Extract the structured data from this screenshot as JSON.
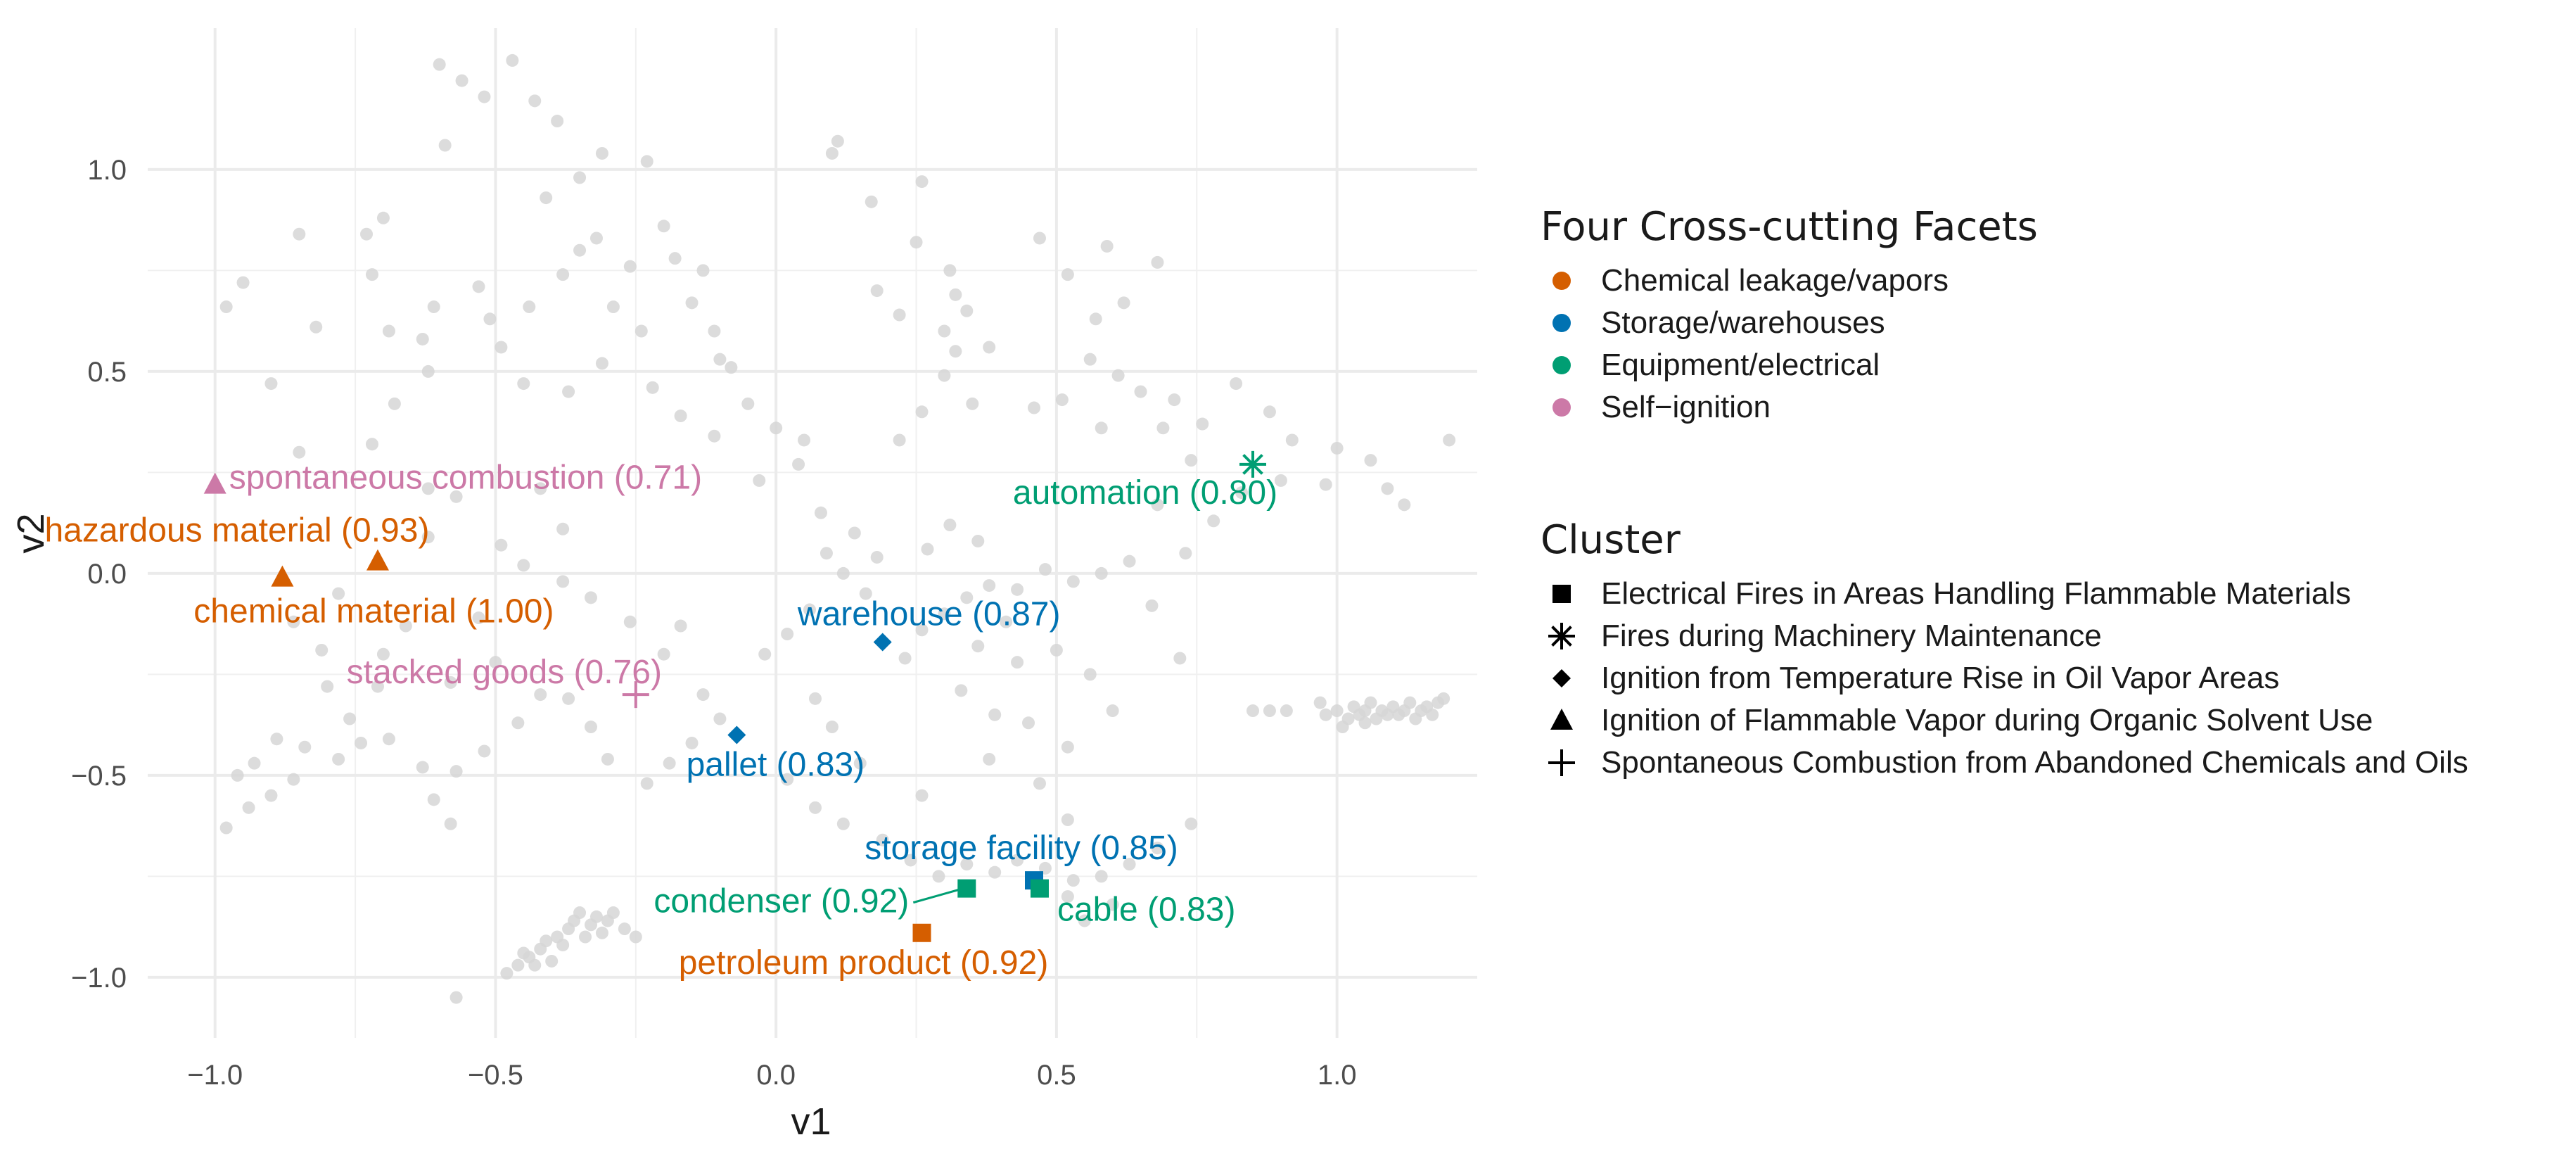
{
  "chart_data": {
    "type": "scatter",
    "xlabel": "v1",
    "ylabel": "v2",
    "xlim": [
      -1.12,
      1.25
    ],
    "ylim": [
      -1.15,
      1.35
    ],
    "x_ticks": [
      -1.0,
      -0.5,
      0.0,
      0.5,
      1.0
    ],
    "x_tick_labels": [
      "−1.0",
      "−0.5",
      "0.0",
      "0.5",
      "1.0"
    ],
    "y_ticks": [
      -1.0,
      -0.5,
      0.0,
      0.5,
      1.0
    ],
    "y_tick_labels": [
      "−1.0",
      "−0.5",
      "0.0",
      "0.5",
      "1.0"
    ],
    "grid": true,
    "facet_legend": {
      "title": "Four Cross-cutting Facets",
      "items": [
        {
          "label": "Chemical leakage/vapors",
          "color": "#D55E00"
        },
        {
          "label": "Storage/warehouses",
          "color": "#0072B2"
        },
        {
          "label": "Equipment/electrical",
          "color": "#009E73"
        },
        {
          "label": "Self−ignition",
          "color": "#CC79A7"
        }
      ]
    },
    "cluster_legend": {
      "title": "Cluster",
      "items": [
        {
          "label": "Electrical Fires in Areas Handling Flammable Materials",
          "shape": "square"
        },
        {
          "label": "Fires during Machinery Maintenance",
          "shape": "asterisk"
        },
        {
          "label": "Ignition from Temperature Rise in Oil Vapor Areas",
          "shape": "diamond"
        },
        {
          "label": "Ignition of Flammable Vapor during Organic Solvent Use",
          "shape": "triangle"
        },
        {
          "label": "Spontaneous Combustion from Abandoned Chemicals and Oils",
          "shape": "plus"
        }
      ]
    },
    "highlighted_points": [
      {
        "term": "spontaneous combustion (0.71)",
        "x": -1.0,
        "y": 0.22,
        "facet": "Self−ignition",
        "color": "#CC79A7",
        "shape": "triangle"
      },
      {
        "term": "hazardous material (0.93)",
        "x": -0.71,
        "y": 0.03,
        "facet": "Chemical leakage/vapors",
        "color": "#D55E00",
        "shape": "triangle"
      },
      {
        "term": "chemical material (1.00)",
        "x": -0.88,
        "y": -0.01,
        "facet": "Chemical leakage/vapors",
        "color": "#D55E00",
        "shape": "triangle"
      },
      {
        "term": "stacked goods (0.76)",
        "x": -0.25,
        "y": -0.3,
        "facet": "Self−ignition",
        "color": "#CC79A7",
        "shape": "plus"
      },
      {
        "term": "warehouse (0.87)",
        "x": 0.19,
        "y": -0.17,
        "facet": "Storage/warehouses",
        "color": "#0072B2",
        "shape": "diamond"
      },
      {
        "term": "pallet (0.83)",
        "x": -0.07,
        "y": -0.4,
        "facet": "Storage/warehouses",
        "color": "#0072B2",
        "shape": "diamond"
      },
      {
        "term": "automation (0.80)",
        "x": 0.85,
        "y": 0.27,
        "facet": "Equipment/electrical",
        "color": "#009E73",
        "shape": "asterisk"
      },
      {
        "term": "storage facility (0.85)",
        "x": 0.46,
        "y": -0.76,
        "facet": "Storage/warehouses",
        "color": "#0072B2",
        "shape": "square"
      },
      {
        "term": "condenser (0.92)",
        "x": 0.34,
        "y": -0.78,
        "facet": "Equipment/electrical",
        "color": "#009E73",
        "shape": "square"
      },
      {
        "term": "cable (0.83)",
        "x": 0.47,
        "y": -0.78,
        "facet": "Equipment/electrical",
        "color": "#009E73",
        "shape": "square"
      },
      {
        "term": "petroleum product (0.92)",
        "x": 0.26,
        "y": -0.89,
        "facet": "Chemical leakage/vapors",
        "color": "#D55E00",
        "shape": "square"
      }
    ],
    "background_points": [
      [
        -0.6,
        1.26
      ],
      [
        -0.52,
        1.18
      ],
      [
        -0.47,
        1.27
      ],
      [
        -0.56,
        1.22
      ],
      [
        -0.43,
        1.17
      ],
      [
        -0.59,
        1.06
      ],
      [
        -0.39,
        1.12
      ],
      [
        -0.31,
        1.04
      ],
      [
        -0.35,
        0.98
      ],
      [
        -0.23,
        1.02
      ],
      [
        -0.41,
        0.93
      ],
      [
        -0.2,
        0.86
      ],
      [
        -0.18,
        0.78
      ],
      [
        -0.26,
        0.76
      ],
      [
        -0.32,
        0.83
      ],
      [
        -0.35,
        0.8
      ],
      [
        -0.38,
        0.74
      ],
      [
        -0.29,
        0.66
      ],
      [
        -0.24,
        0.6
      ],
      [
        -0.44,
        0.66
      ],
      [
        -0.53,
        0.71
      ],
      [
        -0.61,
        0.66
      ],
      [
        -0.63,
        0.58
      ],
      [
        -0.69,
        0.6
      ],
      [
        -0.72,
        0.74
      ],
      [
        -0.62,
        0.5
      ],
      [
        -0.51,
        0.63
      ],
      [
        -0.49,
        0.56
      ],
      [
        -0.45,
        0.47
      ],
      [
        -0.37,
        0.45
      ],
      [
        -0.31,
        0.52
      ],
      [
        -0.22,
        0.46
      ],
      [
        -0.17,
        0.39
      ],
      [
        -0.11,
        0.34
      ],
      [
        -0.05,
        0.42
      ],
      [
        0.0,
        0.36
      ],
      [
        0.05,
        0.33
      ],
      [
        0.04,
        0.27
      ],
      [
        -0.03,
        0.23
      ],
      [
        -0.08,
        0.51
      ],
      [
        -0.11,
        0.6
      ],
      [
        -0.15,
        0.67
      ],
      [
        -0.13,
        0.75
      ],
      [
        -0.1,
        0.53
      ],
      [
        0.1,
        1.04
      ],
      [
        0.11,
        1.07
      ],
      [
        0.17,
        0.92
      ],
      [
        0.26,
        0.97
      ],
      [
        0.25,
        0.82
      ],
      [
        0.18,
        0.7
      ],
      [
        0.22,
        0.64
      ],
      [
        0.3,
        0.6
      ],
      [
        0.3,
        0.49
      ],
      [
        0.26,
        0.4
      ],
      [
        0.22,
        0.33
      ],
      [
        0.35,
        0.42
      ],
      [
        0.32,
        0.69
      ],
      [
        0.38,
        0.56
      ],
      [
        0.32,
        0.55
      ],
      [
        0.34,
        0.65
      ],
      [
        0.31,
        0.75
      ],
      [
        0.46,
        0.41
      ],
      [
        0.51,
        0.43
      ],
      [
        0.56,
        0.53
      ],
      [
        0.58,
        0.36
      ],
      [
        0.61,
        0.49
      ],
      [
        0.65,
        0.45
      ],
      [
        0.57,
        0.63
      ],
      [
        0.52,
        0.74
      ],
      [
        0.59,
        0.81
      ],
      [
        0.68,
        0.77
      ],
      [
        0.47,
        0.83
      ],
      [
        0.62,
        0.67
      ],
      [
        -0.7,
        0.88
      ],
      [
        -0.73,
        0.84
      ],
      [
        -0.85,
        0.84
      ],
      [
        -0.95,
        0.72
      ],
      [
        -0.98,
        0.66
      ],
      [
        -0.82,
        0.61
      ],
      [
        -0.9,
        0.47
      ],
      [
        -0.85,
        0.3
      ],
      [
        -0.72,
        0.32
      ],
      [
        -0.68,
        0.42
      ],
      [
        -0.62,
        0.21
      ],
      [
        -0.57,
        0.19
      ],
      [
        -0.62,
        0.09
      ],
      [
        -0.49,
        0.07
      ],
      [
        -0.42,
        0.21
      ],
      [
        -0.38,
        0.11
      ],
      [
        -0.45,
        0.02
      ],
      [
        -0.38,
        -0.02
      ],
      [
        -0.33,
        -0.06
      ],
      [
        -0.26,
        -0.12
      ],
      [
        -0.17,
        -0.13
      ],
      [
        -0.2,
        -0.2
      ],
      [
        -0.13,
        -0.3
      ],
      [
        -0.1,
        -0.36
      ],
      [
        -0.15,
        -0.42
      ],
      [
        -0.19,
        -0.47
      ],
      [
        -0.23,
        -0.52
      ],
      [
        -0.3,
        -0.46
      ],
      [
        -0.33,
        -0.38
      ],
      [
        -0.37,
        -0.31
      ],
      [
        -0.42,
        -0.3
      ],
      [
        -0.46,
        -0.37
      ],
      [
        -0.52,
        -0.44
      ],
      [
        -0.57,
        -0.49
      ],
      [
        -0.61,
        -0.56
      ],
      [
        -0.58,
        -0.62
      ],
      [
        -0.63,
        -0.48
      ],
      [
        -0.69,
        -0.41
      ],
      [
        -0.74,
        -0.42
      ],
      [
        -0.78,
        -0.46
      ],
      [
        -0.84,
        -0.43
      ],
      [
        -0.89,
        -0.41
      ],
      [
        -0.93,
        -0.47
      ],
      [
        -0.86,
        -0.51
      ],
      [
        -0.9,
        -0.55
      ],
      [
        -0.96,
        -0.5
      ],
      [
        -0.98,
        -0.63
      ],
      [
        -0.94,
        -0.58
      ],
      [
        -0.76,
        -0.36
      ],
      [
        -0.71,
        -0.28
      ],
      [
        -0.8,
        -0.28
      ],
      [
        -0.81,
        -0.19
      ],
      [
        -0.86,
        -0.12
      ],
      [
        -0.78,
        -0.05
      ],
      [
        -0.66,
        -0.13
      ],
      [
        -0.7,
        -0.2
      ],
      [
        -0.58,
        -0.27
      ],
      [
        -0.5,
        -0.22
      ],
      [
        -0.53,
        -0.11
      ],
      [
        0.02,
        -0.51
      ],
      [
        0.07,
        -0.58
      ],
      [
        0.12,
        -0.62
      ],
      [
        0.19,
        -0.66
      ],
      [
        0.24,
        -0.71
      ],
      [
        0.29,
        -0.75
      ],
      [
        0.34,
        -0.72
      ],
      [
        0.39,
        -0.74
      ],
      [
        0.43,
        -0.71
      ],
      [
        0.48,
        -0.73
      ],
      [
        0.53,
        -0.76
      ],
      [
        0.58,
        -0.75
      ],
      [
        0.63,
        -0.72
      ],
      [
        0.68,
        -0.68
      ],
      [
        0.74,
        -0.62
      ],
      [
        0.6,
        -0.82
      ],
      [
        0.55,
        -0.86
      ],
      [
        0.52,
        -0.8
      ],
      [
        -0.48,
        -0.99
      ],
      [
        -0.46,
        -0.97
      ],
      [
        -0.44,
        -0.95
      ],
      [
        -0.42,
        -0.93
      ],
      [
        -0.41,
        -0.91
      ],
      [
        -0.39,
        -0.9
      ],
      [
        -0.37,
        -0.88
      ],
      [
        -0.36,
        -0.86
      ],
      [
        -0.35,
        -0.84
      ],
      [
        -0.34,
        -0.9
      ],
      [
        -0.33,
        -0.87
      ],
      [
        -0.32,
        -0.85
      ],
      [
        -0.31,
        -0.89
      ],
      [
        -0.3,
        -0.86
      ],
      [
        -0.29,
        -0.84
      ],
      [
        -0.38,
        -0.92
      ],
      [
        -0.43,
        -0.97
      ],
      [
        -0.45,
        -0.94
      ],
      [
        -0.4,
        -0.96
      ],
      [
        -0.57,
        -1.05
      ],
      [
        -0.27,
        -0.88
      ],
      [
        -0.25,
        -0.9
      ],
      [
        0.85,
        -0.34
      ],
      [
        0.88,
        -0.34
      ],
      [
        0.91,
        -0.34
      ],
      [
        0.98,
        -0.35
      ],
      [
        1.0,
        -0.34
      ],
      [
        1.02,
        -0.36
      ],
      [
        1.03,
        -0.33
      ],
      [
        1.04,
        -0.35
      ],
      [
        1.05,
        -0.34
      ],
      [
        1.06,
        -0.32
      ],
      [
        1.07,
        -0.36
      ],
      [
        1.08,
        -0.34
      ],
      [
        1.09,
        -0.35
      ],
      [
        1.1,
        -0.33
      ],
      [
        1.11,
        -0.35
      ],
      [
        1.12,
        -0.34
      ],
      [
        1.13,
        -0.32
      ],
      [
        1.14,
        -0.36
      ],
      [
        1.15,
        -0.34
      ],
      [
        1.16,
        -0.33
      ],
      [
        1.17,
        -0.35
      ],
      [
        1.18,
        -0.32
      ],
      [
        1.19,
        -0.31
      ],
      [
        1.05,
        -0.37
      ],
      [
        1.01,
        -0.38
      ],
      [
        0.97,
        -0.32
      ],
      [
        1.0,
        0.31
      ],
      [
        1.06,
        0.28
      ],
      [
        1.09,
        0.21
      ],
      [
        1.12,
        0.17
      ],
      [
        0.98,
        0.22
      ],
      [
        0.92,
        0.33
      ],
      [
        0.9,
        0.23
      ],
      [
        0.83,
        0.2
      ],
      [
        0.88,
        0.4
      ],
      [
        0.82,
        0.47
      ],
      [
        0.76,
        0.37
      ],
      [
        0.71,
        0.43
      ],
      [
        0.74,
        0.28
      ],
      [
        0.69,
        0.36
      ],
      [
        0.68,
        0.17
      ],
      [
        0.73,
        0.05
      ],
      [
        0.78,
        0.13
      ],
      [
        1.2,
        0.33
      ],
      [
        0.63,
        0.03
      ],
      [
        0.58,
        0.0
      ],
      [
        0.53,
        -0.02
      ],
      [
        0.48,
        0.01
      ],
      [
        0.43,
        -0.04
      ],
      [
        0.38,
        -0.03
      ],
      [
        0.34,
        -0.06
      ],
      [
        0.3,
        -0.1
      ],
      [
        0.26,
        -0.14
      ],
      [
        0.23,
        -0.21
      ],
      [
        0.41,
        -0.12
      ],
      [
        0.36,
        -0.18
      ],
      [
        0.43,
        -0.22
      ],
      [
        0.5,
        -0.19
      ],
      [
        0.56,
        -0.25
      ],
      [
        0.6,
        -0.34
      ],
      [
        0.52,
        -0.43
      ],
      [
        0.45,
        -0.37
      ],
      [
        0.39,
        -0.35
      ],
      [
        0.33,
        -0.29
      ],
      [
        0.16,
        -0.05
      ],
      [
        0.12,
        0.0
      ],
      [
        0.09,
        0.05
      ],
      [
        0.06,
        -0.09
      ],
      [
        0.02,
        -0.15
      ],
      [
        -0.02,
        -0.2
      ],
      [
        0.08,
        0.15
      ],
      [
        0.14,
        0.1
      ],
      [
        0.18,
        0.04
      ],
      [
        0.27,
        0.06
      ],
      [
        0.31,
        0.12
      ],
      [
        0.36,
        0.08
      ],
      [
        0.07,
        -0.31
      ],
      [
        0.1,
        -0.38
      ],
      [
        0.15,
        -0.47
      ],
      [
        0.26,
        -0.55
      ],
      [
        0.38,
        -0.46
      ],
      [
        0.47,
        -0.52
      ],
      [
        0.52,
        -0.61
      ],
      [
        0.67,
        -0.08
      ],
      [
        0.72,
        -0.21
      ]
    ]
  }
}
